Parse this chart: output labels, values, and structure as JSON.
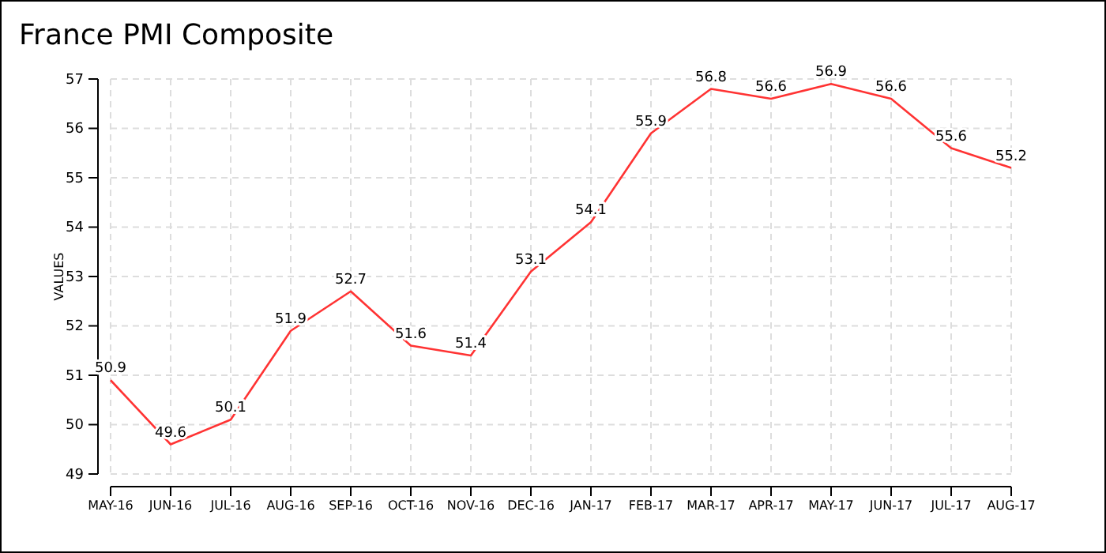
{
  "chart_data": {
    "type": "line",
    "title": "France PMI Composite",
    "ylabel": "VALUES",
    "categories": [
      "MAY-16",
      "JUN-16",
      "JUL-16",
      "AUG-16",
      "SEP-16",
      "OCT-16",
      "NOV-16",
      "DEC-16",
      "JAN-17",
      "FEB-17",
      "MAR-17",
      "APR-17",
      "MAY-17",
      "JUN-17",
      "JUL-17",
      "AUG-17"
    ],
    "series": [
      {
        "color": "#ff3333",
        "values": [
          50.9,
          49.6,
          50.1,
          51.9,
          52.7,
          51.6,
          51.4,
          53.1,
          54.1,
          55.9,
          56.8,
          56.6,
          56.9,
          56.6,
          55.6,
          55.2
        ]
      }
    ],
    "ylim": [
      49,
      57
    ],
    "yticks": [
      49,
      50,
      51,
      52,
      53,
      54,
      55,
      56,
      57
    ],
    "grid": true,
    "data_labels": true,
    "marker": "none",
    "line_style": "solid"
  }
}
